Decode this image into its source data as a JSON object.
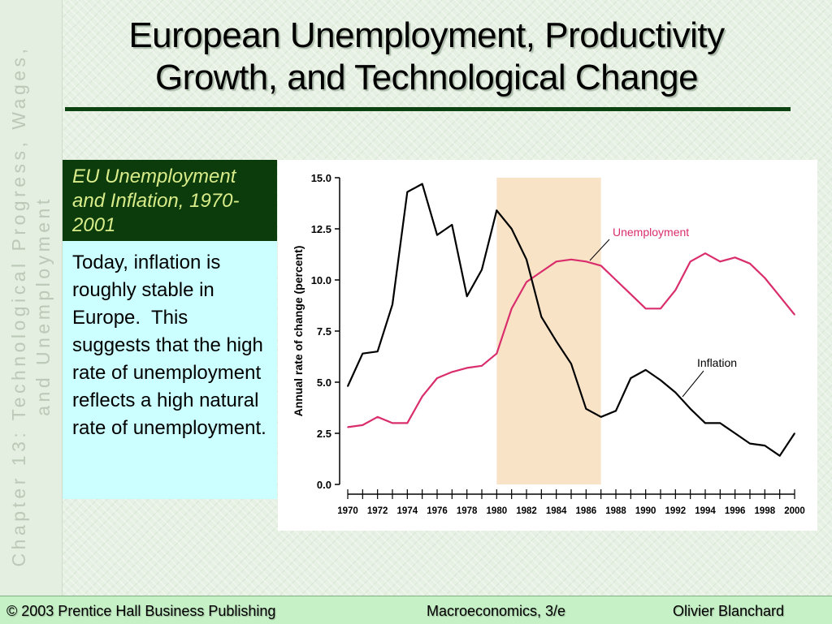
{
  "sidebar": {
    "line1": "Chapter 13:  Technological Progress, Wages,",
    "line2": "and Unemployment"
  },
  "slide": {
    "title": "European Unemployment, Productivity Growth, and Technological Change"
  },
  "callout": {
    "heading": "EU Unemployment and Inflation, 1970-2001",
    "body": "Today, inflation is roughly stable in Europe.  This suggests that the high rate of unemployment reflects a high natural rate of unemployment."
  },
  "footer": {
    "copyright": "© 2003 Prentice Hall Business Publishing",
    "book": "Macroeconomics, 3/e",
    "author": "Olivier Blanchard"
  },
  "chart_data": {
    "type": "line",
    "title": "",
    "xlabel": "",
    "ylabel": "Annual rate of change (percent)",
    "xlim": [
      1970,
      2000
    ],
    "ylim": [
      0,
      15
    ],
    "yticks": [
      "0.0",
      "2.5",
      "5.0",
      "7.5",
      "10.0",
      "12.5",
      "15.0"
    ],
    "xticks": [
      "1970",
      "1972",
      "1974",
      "1976",
      "1978",
      "1980",
      "1982",
      "1984",
      "1986",
      "1988",
      "1990",
      "1992",
      "1994",
      "1996",
      "1998",
      "2000"
    ],
    "shaded_region": [
      1980,
      1987
    ],
    "shaded_color": "#f8e3c7",
    "grid": false,
    "x": [
      1970,
      1971,
      1972,
      1973,
      1974,
      1975,
      1976,
      1977,
      1978,
      1979,
      1980,
      1981,
      1982,
      1983,
      1984,
      1985,
      1986,
      1987,
      1988,
      1989,
      1990,
      1991,
      1992,
      1993,
      1994,
      1995,
      1996,
      1997,
      1998,
      1999,
      2000
    ],
    "series": [
      {
        "name": "Unemployment",
        "color": "#d92d6c",
        "values": [
          2.8,
          2.9,
          3.3,
          3.0,
          3.0,
          4.3,
          5.2,
          5.5,
          5.7,
          5.8,
          6.4,
          8.6,
          9.9,
          10.4,
          10.9,
          11.0,
          10.9,
          10.7,
          10.0,
          9.3,
          8.6,
          8.6,
          9.5,
          10.9,
          11.3,
          10.9,
          11.1,
          10.8,
          10.1,
          9.2,
          8.3
        ]
      },
      {
        "name": "Inflation",
        "color": "#000000",
        "values": [
          4.8,
          6.4,
          6.5,
          8.8,
          14.3,
          14.7,
          12.2,
          12.7,
          9.2,
          10.5,
          13.4,
          12.5,
          11.0,
          8.2,
          7.0,
          5.9,
          3.7,
          3.3,
          3.6,
          5.2,
          5.6,
          5.1,
          4.5,
          3.7,
          3.0,
          3.0,
          2.5,
          2.0,
          1.9,
          1.4,
          2.5
        ]
      }
    ],
    "annotations": [
      "Unemployment",
      "Inflation"
    ]
  }
}
